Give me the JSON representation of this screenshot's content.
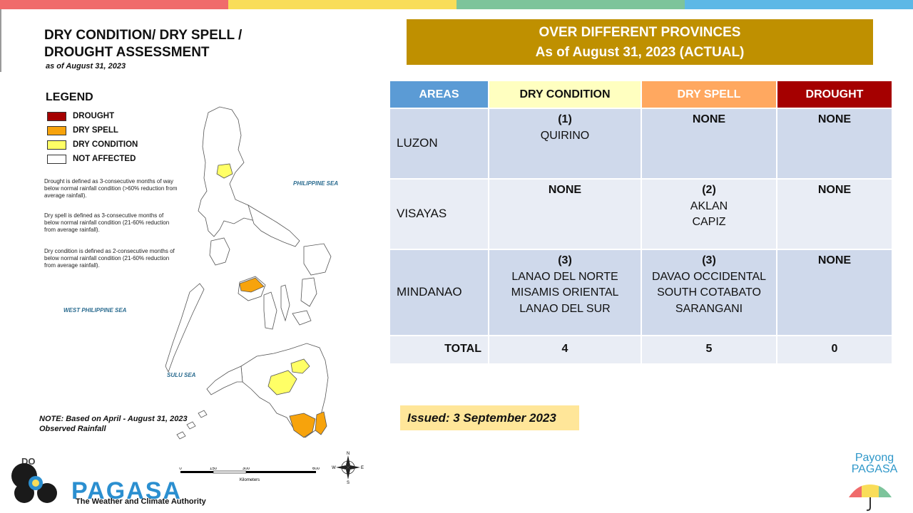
{
  "colors": {
    "drought": "#a50000",
    "dry_spell": "#f7a30c",
    "dry_condition": "#ffff66",
    "not_affected": "#ffffff",
    "banner": "#bf9000",
    "issued_bg": "#ffe699",
    "header_areas": "#5b9bd5",
    "row_dark": "#cfd9eb",
    "row_light": "#e9edf5"
  },
  "top_stripe_colors": [
    "#f06b6b",
    "#f9dd59",
    "#7dc49b",
    "#5db8e6"
  ],
  "map": {
    "title": "DRY CONDITION/ DRY SPELL / DROUGHT ASSESSMENT",
    "as_of": "as of August 31, 2023",
    "legend_title": "LEGEND",
    "legend": [
      {
        "label": "DROUGHT",
        "color": "#a50000"
      },
      {
        "label": "DRY SPELL",
        "color": "#f7a30c"
      },
      {
        "label": "DRY CONDITION",
        "color": "#ffff66"
      },
      {
        "label": "NOT AFFECTED",
        "color": "#ffffff"
      }
    ],
    "definitions": [
      "Drought is defined as 3-consecutive months of way below normal rainfall condition (>60% reduction from average rainfall).",
      "Dry spell is defined as 3-consecutive months of below normal rainfall condition (21-60% reduction from average rainfall).",
      "Dry condition is defined as 2-consecutive months of below normal rainfall condition (21-60% reduction from average rainfall)."
    ],
    "seas": {
      "philippine_sea": "PHILIPPINE SEA",
      "west_philippine_sea": "WEST PHILIPPINE SEA",
      "sulu_sea": "SULU SEA"
    },
    "note": "NOTE: Based on April - August 31, 2023 Observed Rainfall",
    "scale": {
      "ticks": [
        "0",
        "150",
        "300",
        "600"
      ],
      "unit": "Kilometers"
    },
    "compass": {
      "n": "N",
      "s": "S",
      "e": "E",
      "w": "W"
    }
  },
  "branding": {
    "dost": "DO",
    "pagasa": "PAGASA",
    "tagline": "The Weather and Climate Authority",
    "payong_1": "Payong",
    "payong_2": "PAGASA"
  },
  "banner": {
    "line1": "OVER DIFFERENT PROVINCES",
    "line2": "As of August 31, 2023 (ACTUAL)"
  },
  "table": {
    "headers": [
      "AREAS",
      "DRY CONDITION",
      "DRY SPELL",
      "DROUGHT"
    ],
    "rows": [
      {
        "area": "LUZON",
        "dry_condition": {
          "count": "(1)",
          "provinces": "QUIRINO"
        },
        "dry_spell": {
          "count": "NONE",
          "provinces": ""
        },
        "drought": {
          "count": "NONE",
          "provinces": ""
        }
      },
      {
        "area": "VISAYAS",
        "dry_condition": {
          "count": "NONE",
          "provinces": ""
        },
        "dry_spell": {
          "count": "(2)",
          "provinces": "AKLAN\nCAPIZ"
        },
        "drought": {
          "count": "NONE",
          "provinces": ""
        }
      },
      {
        "area": "MINDANAO",
        "dry_condition": {
          "count": "(3)",
          "provinces": "LANAO DEL NORTE\nMISAMIS ORIENTAL\nLANAO DEL SUR"
        },
        "dry_spell": {
          "count": "(3)",
          "provinces": "DAVAO OCCIDENTAL\nSOUTH COTABATO\nSARANGANI"
        },
        "drought": {
          "count": "NONE",
          "provinces": ""
        }
      }
    ],
    "total": {
      "label": "TOTAL",
      "dry_condition": "4",
      "dry_spell": "5",
      "drought": "0"
    }
  },
  "issued": "Issued:  3 September 2023"
}
